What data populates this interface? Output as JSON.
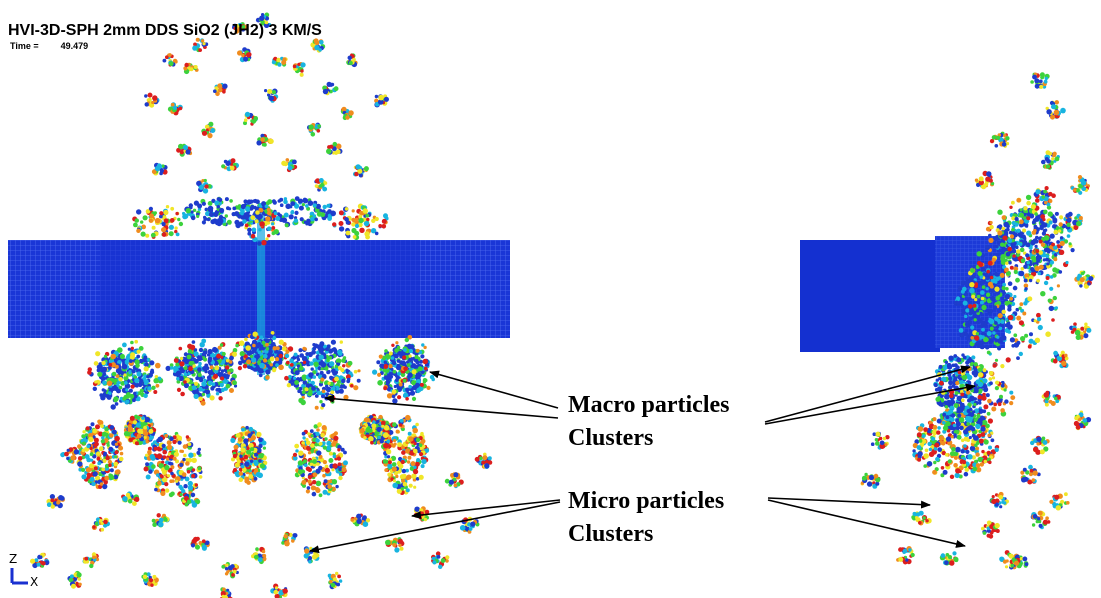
{
  "header": {
    "title": "HVI-3D-SPH 2mm DDS SiO2 (JH2) 3 KM/S",
    "time_label": "Time =",
    "time_value": "49.479"
  },
  "annotations": {
    "macro_line1": "Macro particles",
    "macro_line2": "Clusters",
    "micro_line1": "Micro particles",
    "micro_line2": "Clusters"
  },
  "triad": {
    "z_label": "Z",
    "x_label": "X"
  },
  "colors": {
    "plate": "#1632d8",
    "plate_grid": "#5b78f0",
    "particle_blue": "#1e3ccc",
    "particle_cyan": "#18b4e0",
    "particle_green": "#3cd23c",
    "particle_yellow": "#f0e628",
    "particle_orange": "#f08c1e",
    "particle_red": "#dc1e1e",
    "triad": "#1a30d0",
    "arrow": "#000000"
  }
}
